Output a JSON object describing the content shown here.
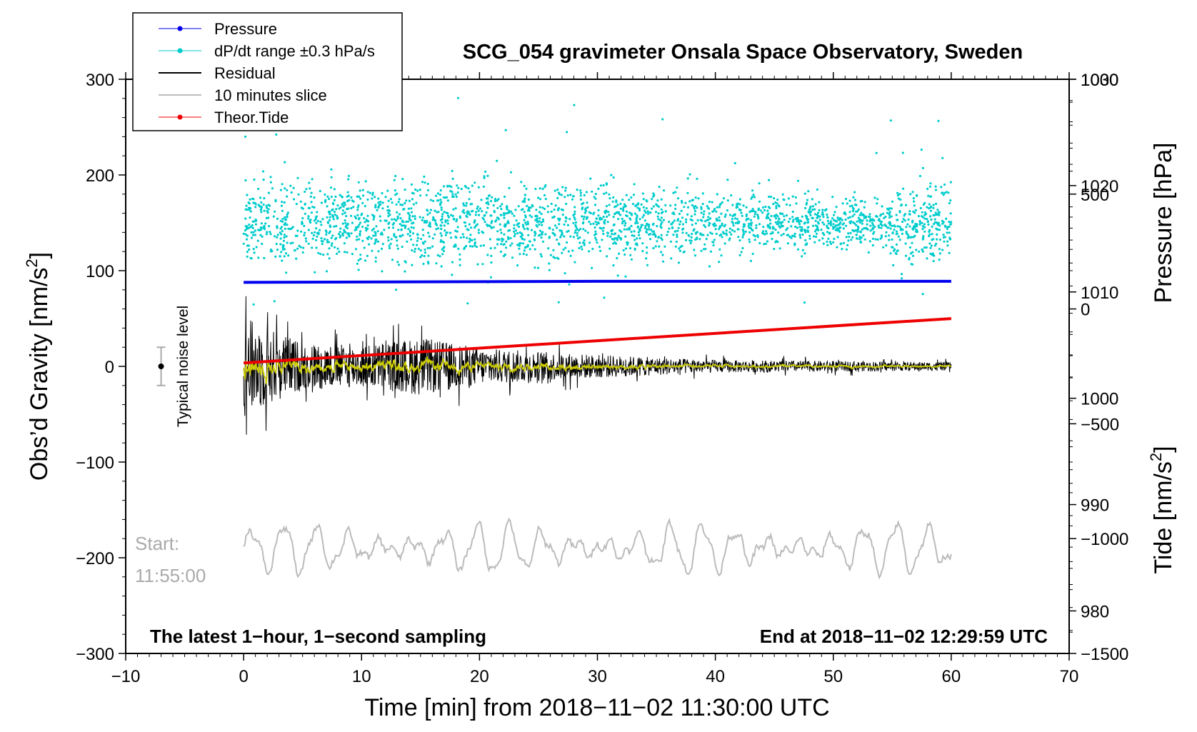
{
  "chart_data": {
    "type": "line",
    "title": "SCG_054 gravimeter Onsala Space Observatory, Sweden",
    "xlabel": "Time [min] from 2018−11−02 11:30:00 UTC",
    "ylabel_left": "Obs’d Gravity [nm/s²]",
    "ylabel_right_top": "Pressure [hPa]",
    "ylabel_right_bottom": "Tide [nm/s²]",
    "xlim": [
      -10,
      70
    ],
    "ylim": [
      -300,
      300
    ],
    "pressure_axis": {
      "range": [
        976,
        1030
      ],
      "ticks": [
        980,
        990,
        1000,
        1010,
        1020,
        1030
      ]
    },
    "tide_axis": {
      "range": [
        -1500,
        1000
      ],
      "ticks": [
        -1500,
        -1000,
        -500,
        0,
        500,
        1000
      ]
    },
    "x_tick_labels": [
      "−10",
      "0",
      "10",
      "20",
      "30",
      "40",
      "50",
      "60",
      "70"
    ],
    "y_tick_labels": [
      "−300",
      "−200",
      "−100",
      "0",
      "100",
      "200",
      "300"
    ],
    "pressure_tick_labels": [
      "980",
      "990",
      "1000",
      "1010",
      "1020",
      "1030"
    ],
    "tide_tick_labels": [
      "−1500",
      "−1000",
      "−500",
      "0",
      "500",
      "1000"
    ],
    "legend": [
      "Pressure",
      "dP/dt range ±0.3 hPa/s",
      "Residual",
      "10 minutes slice",
      "Theor.Tide"
    ],
    "series": [
      {
        "name": "Pressure",
        "color": "#0000ee",
        "unit": "hPa",
        "x": [
          0,
          30,
          60
        ],
        "values": [
          1010.9,
          1011.0,
          1011.0
        ]
      },
      {
        "name": "dP/dt range ±0.3 hPa/s",
        "color": "#00cccc",
        "plotted_center_nm_s2": 150,
        "plotted_spread_nm_s2": 30
      },
      {
        "name": "Residual",
        "color": "#000000",
        "envelope_x": [
          0,
          5,
          10,
          15,
          20,
          30,
          40,
          50,
          60
        ],
        "envelope_amplitude": [
          95,
          45,
          40,
          55,
          35,
          22,
          12,
          10,
          8
        ]
      },
      {
        "name": "10 minutes slice",
        "color": "#bbbbbb",
        "baseline_nm_s2": -190,
        "amplitude_nm_s2": 25
      },
      {
        "name": "Theor.Tide",
        "color": "#ee0000",
        "unit": "nm/s²",
        "x": [
          0,
          60
        ],
        "values": [
          -235,
          -42
        ]
      }
    ],
    "noise_level_label": "Typical noise level",
    "noise_level": {
      "x": -7,
      "center": 0,
      "half_range": 20
    },
    "start_label": "Start:",
    "start_time": "11:55:00",
    "annotation_left": "The latest 1−hour, 1−second sampling",
    "annotation_right": "End at 2018−11−02 12:29:59 UTC",
    "colors": {
      "pressure": "#0000ee",
      "dpdt": "#00cccc",
      "residual": "#000000",
      "slice": "#bbbbbb",
      "tide": "#ee0000",
      "smoothed": "#cccc00"
    }
  }
}
